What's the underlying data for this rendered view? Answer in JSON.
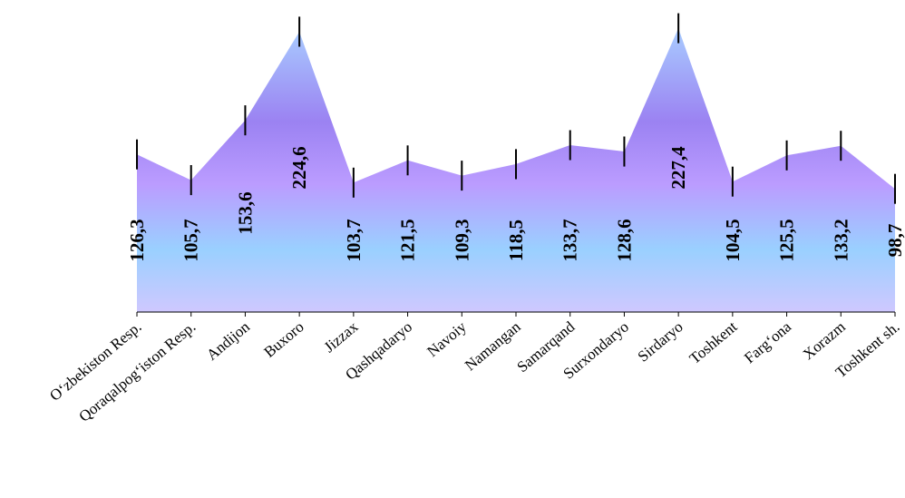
{
  "chart_data": {
    "type": "area",
    "title": "",
    "xlabel": "",
    "ylabel": "",
    "categories": [
      "O‘zbekiston Resp.",
      "Qoraqalpog‘iston Resp.",
      "Andijon",
      "Buxoro",
      "Jizzax",
      "Qashqadaryo",
      "Navoiy",
      "Namangan",
      "Samarqand",
      "Surxondaryo",
      "Sirdaryo",
      "Toshkent",
      "Farg‘ona",
      "Xorazm",
      "Toshkent sh."
    ],
    "values": [
      126.3,
      105.7,
      153.6,
      224.6,
      103.7,
      121.5,
      109.3,
      118.5,
      133.7,
      128.6,
      227.4,
      104.5,
      125.5,
      133.2,
      98.7
    ],
    "value_labels": [
      "126,3",
      "105,7",
      "153,6",
      "224,6",
      "103,7",
      "121,5",
      "109,3",
      "118,5",
      "133,7",
      "128,6",
      "227,4",
      "104,5",
      "125,5",
      "133,2",
      "98,7"
    ],
    "error_bar": 12,
    "ylim": [
      0,
      250
    ],
    "grid": false,
    "legend": "none",
    "colors": {
      "fill_top": "#a8ccff",
      "fill_upper": "#9b82f2",
      "fill_mid": "#bb9cff",
      "fill_lower": "#9ad0ff",
      "fill_bottom": "#cfc8ff",
      "axis": "#000000",
      "text": "#000000"
    }
  }
}
